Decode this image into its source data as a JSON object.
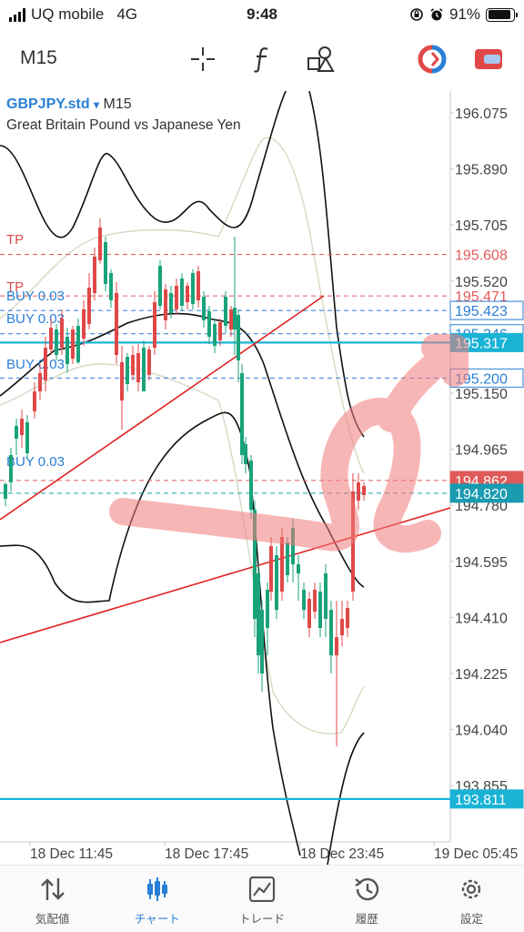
{
  "status": {
    "carrier": "UQ mobile",
    "network": "4G",
    "time": "9:48",
    "battery": "91%",
    "battery_level": 0.91
  },
  "toolbar": {
    "timeframe": "M15",
    "icons": [
      "crosshair-icon",
      "function-icon",
      "objects-icon",
      "trade-signal-icon",
      "one-click-trade-icon"
    ]
  },
  "chart": {
    "symbol": "GBPJPY.std",
    "symbol_caret": "▾",
    "timeframe": "M15",
    "description": "Great Britain Pound vs Japanese Yen",
    "price_ticks": [
      "196.075",
      "195.890",
      "195.705",
      "195.520",
      "195.150",
      "194.965",
      "194.780",
      "194.595",
      "194.410",
      "194.225",
      "194.040",
      "193.855"
    ],
    "time_ticks": [
      "18 Dec 11:45",
      "18 Dec 17:45",
      "18 Dec 23:45",
      "19 Dec 05:45"
    ],
    "order_labels": [
      {
        "text": "TP",
        "color": "#d94a4a"
      },
      {
        "text": "TP",
        "color": "#d94a4a"
      },
      {
        "text": "BUY 0.03",
        "color": "#2a7fd6"
      },
      {
        "text": "BUY 0.03",
        "color": "#2a7fd6"
      },
      {
        "text": "BUY 0.03",
        "color": "#2a7fd6"
      },
      {
        "text": "BUY 0.03",
        "color": "#2a7fd6"
      }
    ],
    "price_levels": [
      {
        "price": "195.608",
        "kind": "tp",
        "color": "#e05a5a"
      },
      {
        "price": "195.471",
        "kind": "tp",
        "color": "#e05a5a"
      },
      {
        "price": "195.423",
        "kind": "buy",
        "color": "#2a7fd6"
      },
      {
        "price": "195.346",
        "kind": "buy",
        "color": "#2a7fd6"
      },
      {
        "price": "195.317",
        "kind": "hline",
        "color": "#1ab3d6"
      },
      {
        "price": "195.200",
        "kind": "buy",
        "color": "#2a7fd6"
      },
      {
        "price": "194.862",
        "kind": "ask",
        "color": "#e05a5a"
      },
      {
        "price": "194.820",
        "kind": "bid",
        "color": "#1a9bb0"
      },
      {
        "price": "193.811",
        "kind": "hline",
        "color": "#1ab3d6"
      }
    ],
    "colors": {
      "bull": "#1aa37a",
      "bear": "#e04848",
      "trendline": "#e02222",
      "band": "#111111",
      "envelope": "#d6d9c2",
      "annotation": "#f07a7a"
    }
  },
  "nav": [
    {
      "label": "気配値",
      "icon": "quotes-icon"
    },
    {
      "label": "チャート",
      "icon": "chart-icon",
      "active": true
    },
    {
      "label": "トレード",
      "icon": "trade-icon"
    },
    {
      "label": "履歴",
      "icon": "history-icon"
    },
    {
      "label": "設定",
      "icon": "settings-icon"
    }
  ]
}
